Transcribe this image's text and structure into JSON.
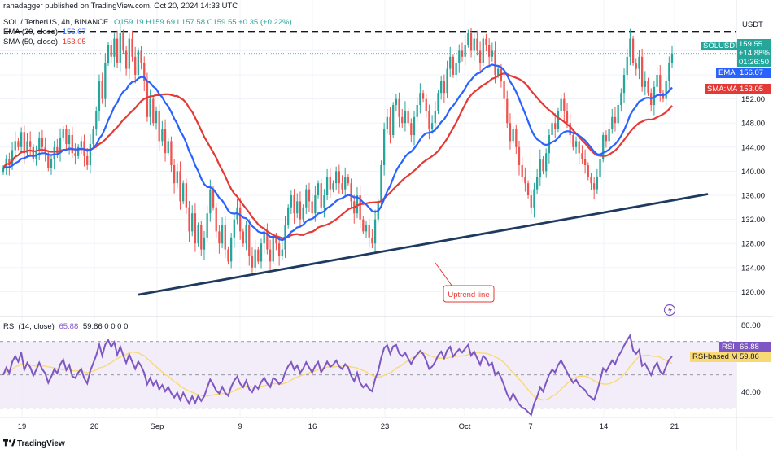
{
  "header": {
    "published": "ranadagger published on TradingView.com, Oct 20, 2024 14:33 UTC",
    "symbol": "SOL / TetherUS, 4h, BINANCE",
    "ohlc": "O159.19 H159.69 L157.58 C159.55 +0.35 (+0.22%)",
    "ema_label": "EMA (20, close)",
    "ema_value": "156.07",
    "sma_label": "SMA (50, close)",
    "sma_value": "153.05",
    "rsi_label": "RSI (14, close)",
    "rsi_value": "65.88",
    "rsi_rest": "59.86  0  0  0  0"
  },
  "currency": "USDT",
  "badges": {
    "last_symbol": "SOLUSDT",
    "last_price": "159.55",
    "last_change": "+14.88%",
    "countdown": "01:26:50",
    "ema_tag": "EMA",
    "ema_val": "156.07",
    "sma_tag": "SMA:MA",
    "sma_val": "153.05",
    "rsi_tag": "RSI",
    "rsi_val": "65.88",
    "rsima_tag": "RSI-based MA",
    "rsima_val": "59.86"
  },
  "annotation": "Uptrend line",
  "logo": "TradingView",
  "colors": {
    "up": "#26a69a",
    "down": "#ef5350",
    "ema": "#2962ff",
    "sma": "#e53935",
    "trendline": "#1e3a5f",
    "rsi": "#7e57c2",
    "rsi_ma": "#f9d976",
    "rsi_band": "#ede7f6",
    "high_line": "#131722"
  },
  "chart_data": {
    "type": "candlestick",
    "price_axis": {
      "ylim": [
        116,
        166
      ],
      "ticks": [
        120,
        124,
        128,
        132,
        136,
        140,
        144,
        148,
        152,
        156,
        160
      ]
    },
    "x_ticks": [
      "19",
      "26",
      "Sep",
      "9",
      "16",
      "23",
      "Oct",
      "7",
      "14",
      "21"
    ],
    "rsi_axis": {
      "ylim": [
        25,
        85
      ],
      "ticks": [
        40,
        80
      ],
      "band": [
        30,
        70
      ]
    },
    "prev_high": 163.2,
    "uptrend_line": {
      "from": {
        "x": "Aug 23",
        "y": 119.5
      },
      "to": {
        "x": "Oct 21",
        "y": 136.2
      }
    },
    "closes": [
      140.5,
      142,
      141,
      143.5,
      145,
      144,
      146.5,
      143,
      145,
      144,
      142,
      143.5,
      145.5,
      144,
      143,
      140.5,
      142,
      144,
      143,
      145.5,
      147,
      144.5,
      146,
      143,
      142.5,
      144,
      145,
      142.5,
      141,
      144.5,
      147,
      150,
      155,
      152,
      158,
      161,
      159,
      162,
      158,
      163,
      160,
      157,
      162,
      159,
      156,
      160,
      158,
      155,
      149,
      152,
      148,
      150,
      145,
      147,
      143,
      145,
      141,
      138,
      140,
      135,
      138,
      134,
      130,
      133,
      128,
      131,
      127,
      129,
      133,
      137,
      134,
      130,
      128,
      131,
      127,
      125,
      129,
      132,
      134,
      130,
      128,
      131,
      126,
      124,
      127,
      125,
      128,
      130,
      127,
      125,
      129,
      128,
      126,
      127,
      131,
      134,
      136,
      133,
      135,
      132,
      134,
      137,
      135,
      133,
      136,
      138,
      134,
      136,
      139,
      137,
      138,
      140,
      138,
      137,
      139,
      138,
      135,
      133,
      136,
      132,
      130,
      131,
      129,
      128,
      132,
      135,
      141,
      147,
      149,
      146,
      151,
      152,
      149,
      148,
      150,
      148,
      146,
      149,
      151,
      153,
      152,
      150,
      147,
      148,
      150,
      153,
      155,
      153,
      157,
      159,
      156,
      158,
      160,
      159,
      161,
      163,
      160,
      162,
      160,
      158,
      162,
      161,
      159,
      160,
      156,
      157,
      155,
      152,
      148,
      145,
      147,
      144,
      141,
      139,
      138,
      136,
      134,
      137,
      139,
      142,
      140,
      143,
      146,
      148,
      147,
      150,
      152,
      150,
      148,
      146,
      144,
      145,
      143,
      142,
      141,
      139,
      138,
      137,
      139,
      142,
      146,
      145,
      147,
      149,
      148,
      151,
      153,
      156,
      159,
      162,
      158,
      157,
      159,
      154,
      155,
      153,
      151,
      154,
      156,
      153,
      152,
      155,
      158,
      159.55
    ]
  }
}
